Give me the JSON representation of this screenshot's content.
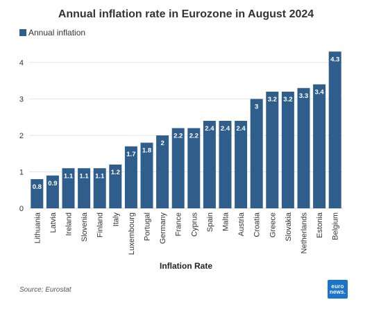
{
  "chart_data": {
    "type": "bar",
    "title": "Annual inflation rate in Eurozone in August 2024",
    "xlabel": "Inflation Rate",
    "ylabel": "",
    "ylim": [
      0,
      4.3
    ],
    "yticks": [
      0,
      1,
      2,
      3,
      4
    ],
    "grid": true,
    "legend_position": "top-left",
    "categories": [
      "Lithuania",
      "Latvia",
      "Ireland",
      "Slovenia",
      "Finland",
      "Italy",
      "Luxembourg",
      "Portugal",
      "Germany",
      "France",
      "Cyprus",
      "Spain",
      "Malta",
      "Austria",
      "Croatia",
      "Greece",
      "Slovakia",
      "Netherlands",
      "Estonia",
      "Belgium"
    ],
    "series": [
      {
        "name": "Annual inflation",
        "values": [
          0.8,
          0.9,
          1.1,
          1.1,
          1.1,
          1.2,
          1.7,
          1.8,
          2,
          2.2,
          2.2,
          2.4,
          2.4,
          2.4,
          3,
          3.2,
          3.2,
          3.3,
          3.4,
          4.3
        ],
        "labels": [
          "0.8",
          "0.9",
          "1.1",
          "1.1",
          "1.1",
          "1.2",
          "1.7",
          "1.8",
          "2",
          "2.2",
          "2.2",
          "2.4",
          "2.4",
          "2.4",
          "3",
          "3.2",
          "3.2",
          "3.3",
          "3.4",
          "4.3"
        ]
      }
    ]
  },
  "source": "Source: Eurostat",
  "logo": {
    "line1": "euro",
    "line2": "news."
  },
  "colors": {
    "bar": "#2f5e8c",
    "grid": "#e6e6e6",
    "text": "#333333",
    "logo_bg": "#1b74c9"
  }
}
